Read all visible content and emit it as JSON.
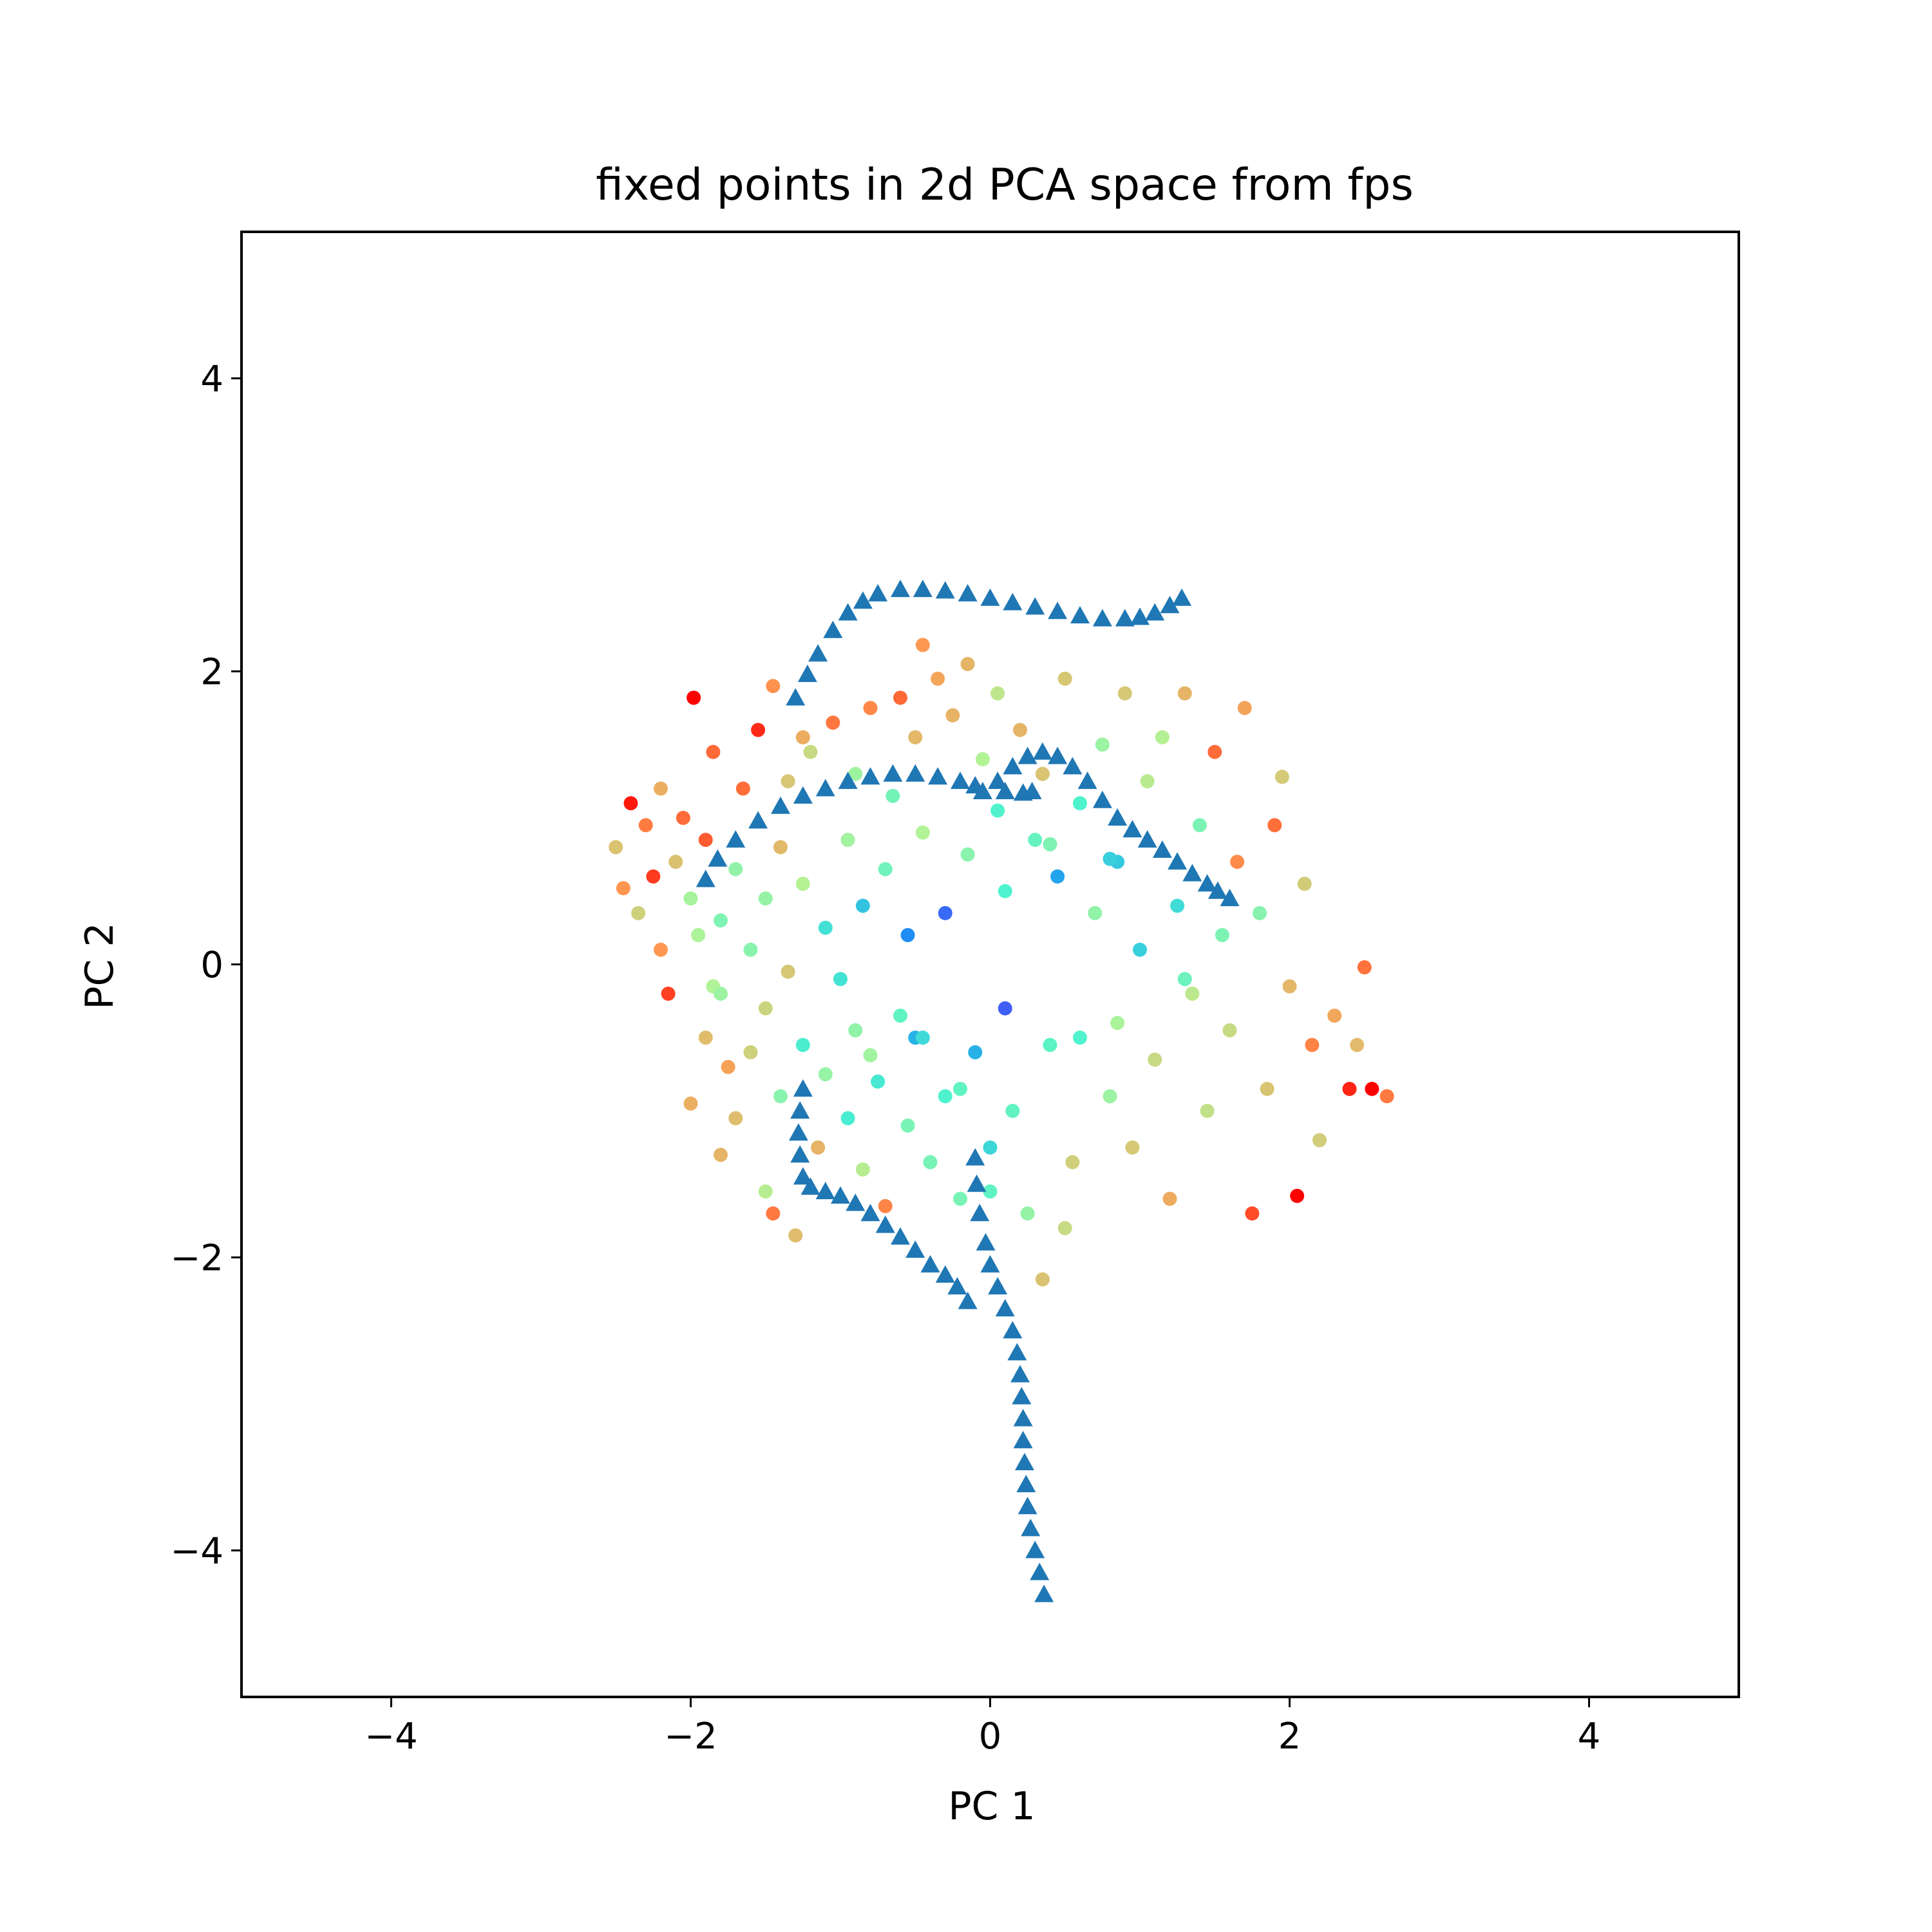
{
  "chart_data": {
    "type": "scatter",
    "title": "fixed points in 2d PCA space from fps",
    "xlabel": "PC 1",
    "ylabel": "PC 2",
    "xlim": [
      -5,
      5
    ],
    "ylim": [
      -5,
      5
    ],
    "xticks": [
      {
        "value": -4,
        "label": "−4"
      },
      {
        "value": -2,
        "label": "−2"
      },
      {
        "value": 0,
        "label": "0"
      },
      {
        "value": 2,
        "label": "2"
      },
      {
        "value": 4,
        "label": "4"
      }
    ],
    "yticks": [
      {
        "value": -4,
        "label": "−4"
      },
      {
        "value": -2,
        "label": "−2"
      },
      {
        "value": 0,
        "label": "0"
      },
      {
        "value": 2,
        "label": "2"
      },
      {
        "value": 4,
        "label": "4"
      }
    ],
    "grid": false,
    "legend": "none",
    "series": [
      {
        "marker": "circle",
        "colormap": "rainbow",
        "points": [
          [
            -2.5,
            0.8
          ],
          [
            -2.45,
            0.52
          ],
          [
            -2.4,
            1.1
          ],
          [
            -2.35,
            0.35
          ],
          [
            -2.3,
            0.95
          ],
          [
            -2.25,
            0.6
          ],
          [
            -2.2,
            1.2
          ],
          [
            -2.2,
            0.1
          ],
          [
            -2.15,
            -0.2
          ],
          [
            -2.1,
            0.7
          ],
          [
            -2.05,
            1.0
          ],
          [
            -2.0,
            0.45
          ],
          [
            -2.0,
            -0.95
          ],
          [
            -1.98,
            1.82
          ],
          [
            -1.95,
            0.2
          ],
          [
            -1.9,
            -0.5
          ],
          [
            -1.9,
            0.85
          ],
          [
            -1.85,
            -0.15
          ],
          [
            -1.85,
            1.45
          ],
          [
            -1.8,
            0.3
          ],
          [
            -1.8,
            -1.3
          ],
          [
            -1.75,
            -0.7
          ],
          [
            -1.7,
            0.65
          ],
          [
            -1.7,
            -1.05
          ],
          [
            -1.65,
            1.2
          ],
          [
            -1.6,
            0.1
          ],
          [
            -1.6,
            -0.6
          ],
          [
            -1.55,
            1.6
          ],
          [
            -1.5,
            0.45
          ],
          [
            -1.5,
            -0.3
          ],
          [
            -1.5,
            -1.55
          ],
          [
            -1.45,
            1.9
          ],
          [
            -1.4,
            0.8
          ],
          [
            -1.4,
            -0.9
          ],
          [
            -1.35,
            1.25
          ],
          [
            -1.35,
            -0.05
          ],
          [
            -1.3,
            -1.85
          ],
          [
            -1.25,
            0.55
          ],
          [
            -1.25,
            -0.55
          ],
          [
            -1.2,
            1.45
          ],
          [
            -1.15,
            -1.25
          ],
          [
            -1.1,
            0.25
          ],
          [
            -1.1,
            -0.75
          ],
          [
            -1.05,
            1.65
          ],
          [
            -1.0,
            -0.1
          ],
          [
            -0.95,
            0.85
          ],
          [
            -0.95,
            -1.05
          ],
          [
            -0.9,
            1.3
          ],
          [
            -0.9,
            -0.45
          ],
          [
            -0.85,
            0.4
          ],
          [
            -0.85,
            -1.4
          ],
          [
            -0.8,
            1.75
          ],
          [
            -0.75,
            -0.8
          ],
          [
            -0.7,
            0.65
          ],
          [
            -0.7,
            -1.65
          ],
          [
            -0.65,
            1.15
          ],
          [
            -0.6,
            -0.35
          ],
          [
            -0.55,
            0.2
          ],
          [
            -0.55,
            -1.1
          ],
          [
            -0.5,
            1.55
          ],
          [
            -0.5,
            -0.5
          ],
          [
            -0.45,
            2.18
          ],
          [
            -0.45,
            0.9
          ],
          [
            -0.4,
            -1.35
          ],
          [
            -0.35,
            1.95
          ],
          [
            -0.3,
            0.35
          ],
          [
            -0.3,
            -0.9
          ],
          [
            -0.25,
            1.7
          ],
          [
            -0.2,
            -1.6
          ],
          [
            -0.15,
            2.05
          ],
          [
            -0.15,
            0.75
          ],
          [
            -0.1,
            -0.6
          ],
          [
            -0.05,
            1.4
          ],
          [
            0.0,
            -1.25
          ],
          [
            0.05,
            1.85
          ],
          [
            0.1,
            0.5
          ],
          [
            0.1,
            -0.3
          ],
          [
            0.15,
            -1.0
          ],
          [
            0.2,
            1.6
          ],
          [
            0.25,
            -1.7
          ],
          [
            0.3,
            0.85
          ],
          [
            0.35,
            1.3
          ],
          [
            0.35,
            -2.15
          ],
          [
            0.4,
            -0.55
          ],
          [
            0.45,
            0.6
          ],
          [
            0.5,
            1.95
          ],
          [
            0.55,
            -1.35
          ],
          [
            0.6,
            1.1
          ],
          [
            0.6,
            -0.5
          ],
          [
            0.7,
            0.35
          ],
          [
            0.75,
            1.5
          ],
          [
            0.8,
            -0.9
          ],
          [
            0.85,
            0.7
          ],
          [
            0.9,
            1.85
          ],
          [
            0.95,
            -1.25
          ],
          [
            1.0,
            0.1
          ],
          [
            1.05,
            1.25
          ],
          [
            1.1,
            -0.65
          ],
          [
            1.15,
            1.55
          ],
          [
            1.2,
            -1.6
          ],
          [
            1.25,
            0.4
          ],
          [
            1.3,
            1.85
          ],
          [
            1.35,
            -0.2
          ],
          [
            1.4,
            0.95
          ],
          [
            1.45,
            -1.0
          ],
          [
            1.5,
            1.45
          ],
          [
            1.55,
            0.2
          ],
          [
            1.6,
            -0.45
          ],
          [
            1.65,
            0.7
          ],
          [
            1.7,
            1.75
          ],
          [
            1.75,
            -1.7
          ],
          [
            1.8,
            0.35
          ],
          [
            1.85,
            -0.85
          ],
          [
            1.9,
            0.95
          ],
          [
            1.95,
            1.28
          ],
          [
            2.0,
            -0.15
          ],
          [
            2.05,
            -1.58
          ],
          [
            2.1,
            0.55
          ],
          [
            2.15,
            -0.55
          ],
          [
            2.2,
            -1.2
          ],
          [
            2.3,
            -0.35
          ],
          [
            2.4,
            -0.85
          ],
          [
            2.45,
            -0.55
          ],
          [
            2.5,
            -0.02
          ],
          [
            2.55,
            -0.85
          ],
          [
            2.65,
            -0.9
          ],
          [
            -1.25,
            1.55
          ],
          [
            -0.6,
            1.82
          ],
          [
            0.05,
            1.05
          ],
          [
            0.4,
            0.82
          ],
          [
            0.8,
            0.72
          ],
          [
            -0.45,
            -0.5
          ],
          [
            -0.8,
            -0.62
          ],
          [
            -1.8,
            -0.2
          ],
          [
            -0.2,
            -0.85
          ],
          [
            0.85,
            -0.4
          ],
          [
            1.3,
            -0.1
          ],
          [
            -1.45,
            -1.7
          ],
          [
            0.0,
            -1.55
          ],
          [
            0.5,
            -1.8
          ]
        ]
      },
      {
        "marker": "triangle",
        "color": "#1f77b4",
        "points": [
          [
            -1.3,
            1.82
          ],
          [
            -1.22,
            1.98
          ],
          [
            -1.15,
            2.12
          ],
          [
            -1.05,
            2.28
          ],
          [
            -0.95,
            2.4
          ],
          [
            -0.85,
            2.48
          ],
          [
            -0.75,
            2.53
          ],
          [
            -0.6,
            2.56
          ],
          [
            -0.45,
            2.56
          ],
          [
            -0.3,
            2.55
          ],
          [
            -0.15,
            2.53
          ],
          [
            0.0,
            2.5
          ],
          [
            0.15,
            2.47
          ],
          [
            0.3,
            2.44
          ],
          [
            0.45,
            2.41
          ],
          [
            0.6,
            2.38
          ],
          [
            0.75,
            2.36
          ],
          [
            0.9,
            2.36
          ],
          [
            1.0,
            2.37
          ],
          [
            1.1,
            2.4
          ],
          [
            1.2,
            2.45
          ],
          [
            1.28,
            2.5
          ],
          [
            -1.9,
            0.58
          ],
          [
            -1.82,
            0.72
          ],
          [
            -1.7,
            0.85
          ],
          [
            -1.55,
            0.98
          ],
          [
            -1.4,
            1.08
          ],
          [
            -1.25,
            1.15
          ],
          [
            -1.1,
            1.2
          ],
          [
            -0.95,
            1.25
          ],
          [
            -0.8,
            1.28
          ],
          [
            -0.65,
            1.3
          ],
          [
            -0.5,
            1.3
          ],
          [
            -0.35,
            1.28
          ],
          [
            -0.2,
            1.25
          ],
          [
            -0.1,
            1.22
          ],
          [
            -0.05,
            1.18
          ],
          [
            0.05,
            1.25
          ],
          [
            0.15,
            1.35
          ],
          [
            0.25,
            1.42
          ],
          [
            0.35,
            1.45
          ],
          [
            0.45,
            1.42
          ],
          [
            0.55,
            1.35
          ],
          [
            0.65,
            1.25
          ],
          [
            0.75,
            1.12
          ],
          [
            0.85,
            1.0
          ],
          [
            0.95,
            0.92
          ],
          [
            1.05,
            0.85
          ],
          [
            1.15,
            0.78
          ],
          [
            1.25,
            0.7
          ],
          [
            1.35,
            0.62
          ],
          [
            1.45,
            0.55
          ],
          [
            1.52,
            0.5
          ],
          [
            1.6,
            0.45
          ],
          [
            0.1,
            1.18
          ],
          [
            0.22,
            1.17
          ],
          [
            0.28,
            1.18
          ],
          [
            -1.25,
            -0.85
          ],
          [
            -1.27,
            -1.0
          ],
          [
            -1.28,
            -1.15
          ],
          [
            -1.27,
            -1.3
          ],
          [
            -1.25,
            -1.45
          ],
          [
            -1.2,
            -1.52
          ],
          [
            -1.1,
            -1.55
          ],
          [
            -1.0,
            -1.58
          ],
          [
            -0.9,
            -1.63
          ],
          [
            -0.8,
            -1.7
          ],
          [
            -0.7,
            -1.78
          ],
          [
            -0.6,
            -1.86
          ],
          [
            -0.5,
            -1.95
          ],
          [
            -0.4,
            -2.05
          ],
          [
            -0.3,
            -2.12
          ],
          [
            -0.22,
            -2.2
          ],
          [
            -0.15,
            -2.3
          ],
          [
            -0.1,
            -1.32
          ],
          [
            -0.09,
            -1.5
          ],
          [
            -0.07,
            -1.7
          ],
          [
            -0.03,
            -1.9
          ],
          [
            0.0,
            -2.05
          ],
          [
            0.05,
            -2.2
          ],
          [
            0.1,
            -2.35
          ],
          [
            0.15,
            -2.5
          ],
          [
            0.18,
            -2.65
          ],
          [
            0.2,
            -2.8
          ],
          [
            0.21,
            -2.95
          ],
          [
            0.22,
            -3.1
          ],
          [
            0.22,
            -3.25
          ],
          [
            0.23,
            -3.4
          ],
          [
            0.24,
            -3.55
          ],
          [
            0.25,
            -3.7
          ],
          [
            0.27,
            -3.85
          ],
          [
            0.3,
            -4.0
          ],
          [
            0.33,
            -4.15
          ],
          [
            0.36,
            -4.3
          ]
        ]
      }
    ]
  }
}
